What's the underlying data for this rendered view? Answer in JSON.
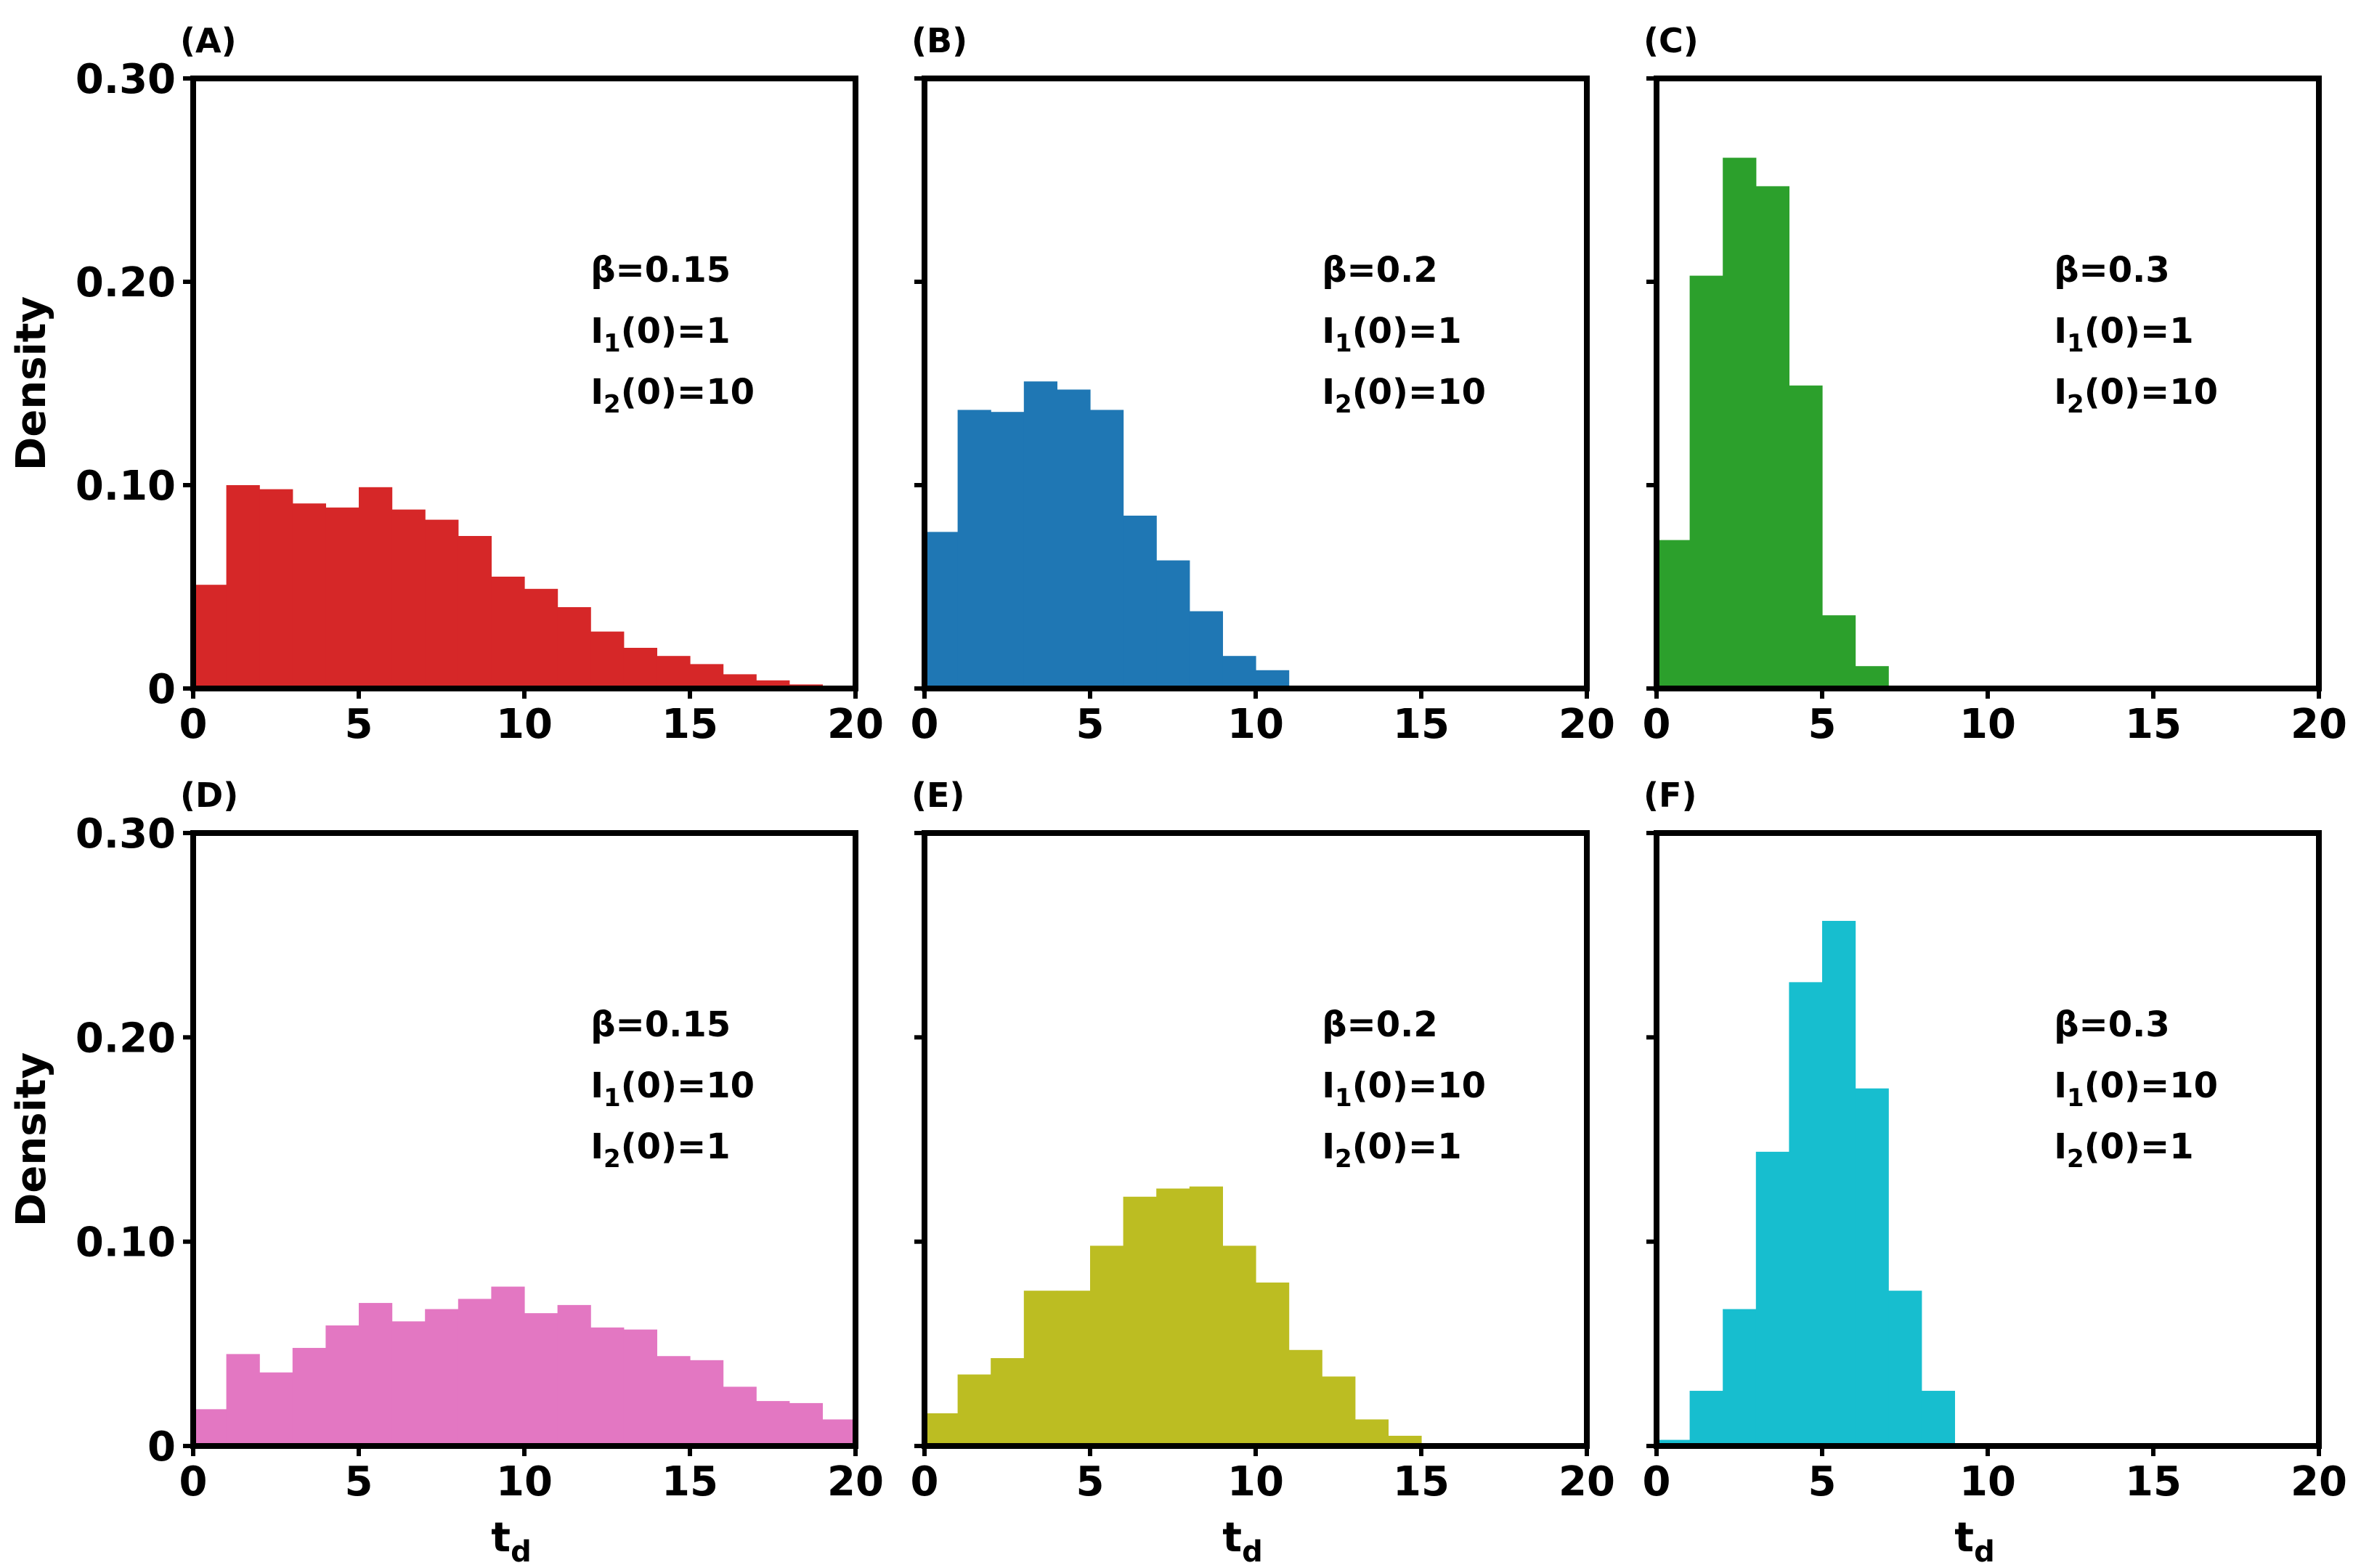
{
  "figure": {
    "ylabel": "Density",
    "xlabel_main": "t",
    "xlabel_sub": "d"
  },
  "chart_data": [
    {
      "type": "bar",
      "panel_label": "(A)",
      "color": "#d62728",
      "xlim": [
        0,
        20
      ],
      "ylim": [
        0,
        0.3
      ],
      "xticks": [
        "0",
        "5",
        "10",
        "15",
        "20"
      ],
      "yticks": [
        "0",
        "0.10",
        "0.20",
        "0.30"
      ],
      "bin_edges": [
        0,
        1,
        2,
        3,
        4,
        5,
        6,
        7,
        8,
        9,
        10,
        11,
        12,
        13,
        14,
        15,
        16,
        17,
        18,
        19,
        20
      ],
      "values": [
        0.051,
        0.1,
        0.098,
        0.091,
        0.089,
        0.099,
        0.088,
        0.083,
        0.075,
        0.055,
        0.049,
        0.04,
        0.028,
        0.02,
        0.016,
        0.012,
        0.007,
        0.004,
        0.002,
        0.001
      ],
      "annotation": {
        "beta": "β=0.15",
        "i1_value": "(0)=1",
        "i2_value": "(0)=10"
      },
      "ylabel_shown": true,
      "xlabel_shown": false
    },
    {
      "type": "bar",
      "panel_label": "(B)",
      "color": "#1f77b4",
      "xlim": [
        0,
        20
      ],
      "ylim": [
        0,
        0.3
      ],
      "xticks": [
        "0",
        "5",
        "10",
        "15",
        "20"
      ],
      "yticks": [],
      "bin_edges": [
        0,
        1,
        2,
        3,
        4,
        5,
        6,
        7,
        8,
        9,
        10,
        11
      ],
      "values": [
        0.077,
        0.137,
        0.136,
        0.151,
        0.147,
        0.137,
        0.085,
        0.063,
        0.038,
        0.016,
        0.009
      ],
      "annotation": {
        "beta": "β=0.2",
        "i1_value": "(0)=1",
        "i2_value": "(0)=10"
      },
      "ylabel_shown": false,
      "xlabel_shown": false
    },
    {
      "type": "bar",
      "panel_label": "(C)",
      "color": "#2ca02c",
      "xlim": [
        0,
        20
      ],
      "ylim": [
        0,
        0.3
      ],
      "xticks": [
        "0",
        "5",
        "10",
        "15",
        "20"
      ],
      "yticks": [],
      "bin_edges": [
        0,
        1,
        2,
        3,
        4,
        5,
        6,
        7
      ],
      "values": [
        0.073,
        0.203,
        0.261,
        0.247,
        0.149,
        0.036,
        0.011
      ],
      "annotation": {
        "beta": "β=0.3",
        "i1_value": "(0)=1",
        "i2_value": "(0)=10"
      },
      "ylabel_shown": false,
      "xlabel_shown": false
    },
    {
      "type": "bar",
      "panel_label": "(D)",
      "color": "#e377c2",
      "xlim": [
        0,
        20
      ],
      "ylim": [
        0,
        0.3
      ],
      "xticks": [
        "0",
        "5",
        "10",
        "15",
        "20"
      ],
      "yticks": [
        "0",
        "0.10",
        "0.20",
        "0.30"
      ],
      "bin_edges": [
        0,
        1,
        2,
        3,
        4,
        5,
        6,
        7,
        8,
        9,
        10,
        11,
        12,
        13,
        14,
        15,
        16,
        17,
        18,
        19,
        20
      ],
      "values": [
        0.018,
        0.045,
        0.036,
        0.048,
        0.059,
        0.07,
        0.061,
        0.067,
        0.072,
        0.078,
        0.065,
        0.069,
        0.058,
        0.057,
        0.044,
        0.042,
        0.029,
        0.022,
        0.021,
        0.013
      ],
      "annotation": {
        "beta": "β=0.15",
        "i1_value": "(0)=10",
        "i2_value": "(0)=1"
      },
      "ylabel_shown": true,
      "xlabel_shown": true
    },
    {
      "type": "bar",
      "panel_label": "(E)",
      "color": "#bcbd22",
      "xlim": [
        0,
        20
      ],
      "ylim": [
        0,
        0.3
      ],
      "xticks": [
        "0",
        "5",
        "10",
        "15",
        "20"
      ],
      "yticks": [],
      "bin_edges": [
        0,
        1,
        2,
        3,
        4,
        5,
        6,
        7,
        8,
        9,
        10,
        11,
        12,
        13,
        14,
        15,
        16
      ],
      "values": [
        0.016,
        0.035,
        0.043,
        0.076,
        0.076,
        0.098,
        0.122,
        0.126,
        0.127,
        0.098,
        0.08,
        0.047,
        0.034,
        0.013,
        0.005,
        0.001
      ],
      "annotation": {
        "beta": "β=0.2",
        "i1_value": "(0)=10",
        "i2_value": "(0)=1"
      },
      "ylabel_shown": false,
      "xlabel_shown": true
    },
    {
      "type": "bar",
      "panel_label": "(F)",
      "color": "#17becf",
      "xlim": [
        0,
        20
      ],
      "ylim": [
        0,
        0.3
      ],
      "xticks": [
        "0",
        "5",
        "10",
        "15",
        "20"
      ],
      "yticks": [],
      "bin_edges": [
        0,
        1,
        2,
        3,
        4,
        5,
        6,
        7,
        8,
        9
      ],
      "values": [
        0.003,
        0.027,
        0.067,
        0.144,
        0.227,
        0.257,
        0.175,
        0.076,
        0.027
      ],
      "annotation": {
        "beta": "β=0.3",
        "i1_value": "(0)=10",
        "i2_value": "(0)=1"
      },
      "ylabel_shown": false,
      "xlabel_shown": true
    }
  ]
}
